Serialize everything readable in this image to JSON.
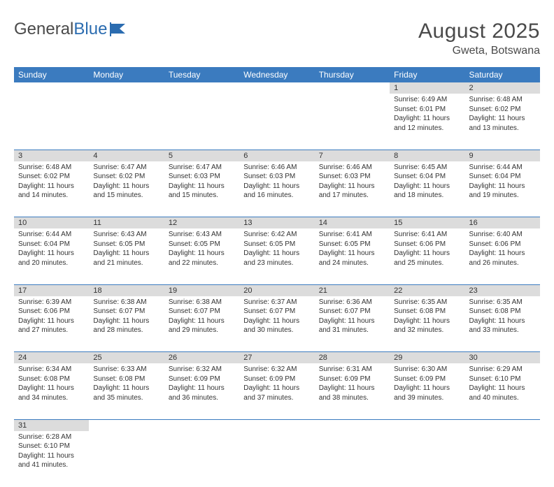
{
  "logo": {
    "text1": "General",
    "text2": "Blue"
  },
  "header": {
    "title": "August 2025",
    "location": "Gweta, Botswana"
  },
  "colors": {
    "header_bg": "#3b7bbf",
    "header_text": "#ffffff",
    "daynum_bg": "#dcdcdc",
    "row_border": "#3b7bbf",
    "body_text": "#333333",
    "title_text": "#4a4a4a",
    "logo_gray": "#4a4a4a",
    "logo_blue": "#2b6cb0"
  },
  "typography": {
    "title_fontsize": 30,
    "location_fontsize": 16,
    "dayheader_fontsize": 12,
    "daynum_fontsize": 11,
    "cell_fontsize": 10
  },
  "day_headers": [
    "Sunday",
    "Monday",
    "Tuesday",
    "Wednesday",
    "Thursday",
    "Friday",
    "Saturday"
  ],
  "weeks": [
    [
      null,
      null,
      null,
      null,
      null,
      {
        "n": "1",
        "sr": "Sunrise: 6:49 AM",
        "ss": "Sunset: 6:01 PM",
        "dl": "Daylight: 11 hours and 12 minutes."
      },
      {
        "n": "2",
        "sr": "Sunrise: 6:48 AM",
        "ss": "Sunset: 6:02 PM",
        "dl": "Daylight: 11 hours and 13 minutes."
      }
    ],
    [
      {
        "n": "3",
        "sr": "Sunrise: 6:48 AM",
        "ss": "Sunset: 6:02 PM",
        "dl": "Daylight: 11 hours and 14 minutes."
      },
      {
        "n": "4",
        "sr": "Sunrise: 6:47 AM",
        "ss": "Sunset: 6:02 PM",
        "dl": "Daylight: 11 hours and 15 minutes."
      },
      {
        "n": "5",
        "sr": "Sunrise: 6:47 AM",
        "ss": "Sunset: 6:03 PM",
        "dl": "Daylight: 11 hours and 15 minutes."
      },
      {
        "n": "6",
        "sr": "Sunrise: 6:46 AM",
        "ss": "Sunset: 6:03 PM",
        "dl": "Daylight: 11 hours and 16 minutes."
      },
      {
        "n": "7",
        "sr": "Sunrise: 6:46 AM",
        "ss": "Sunset: 6:03 PM",
        "dl": "Daylight: 11 hours and 17 minutes."
      },
      {
        "n": "8",
        "sr": "Sunrise: 6:45 AM",
        "ss": "Sunset: 6:04 PM",
        "dl": "Daylight: 11 hours and 18 minutes."
      },
      {
        "n": "9",
        "sr": "Sunrise: 6:44 AM",
        "ss": "Sunset: 6:04 PM",
        "dl": "Daylight: 11 hours and 19 minutes."
      }
    ],
    [
      {
        "n": "10",
        "sr": "Sunrise: 6:44 AM",
        "ss": "Sunset: 6:04 PM",
        "dl": "Daylight: 11 hours and 20 minutes."
      },
      {
        "n": "11",
        "sr": "Sunrise: 6:43 AM",
        "ss": "Sunset: 6:05 PM",
        "dl": "Daylight: 11 hours and 21 minutes."
      },
      {
        "n": "12",
        "sr": "Sunrise: 6:43 AM",
        "ss": "Sunset: 6:05 PM",
        "dl": "Daylight: 11 hours and 22 minutes."
      },
      {
        "n": "13",
        "sr": "Sunrise: 6:42 AM",
        "ss": "Sunset: 6:05 PM",
        "dl": "Daylight: 11 hours and 23 minutes."
      },
      {
        "n": "14",
        "sr": "Sunrise: 6:41 AM",
        "ss": "Sunset: 6:05 PM",
        "dl": "Daylight: 11 hours and 24 minutes."
      },
      {
        "n": "15",
        "sr": "Sunrise: 6:41 AM",
        "ss": "Sunset: 6:06 PM",
        "dl": "Daylight: 11 hours and 25 minutes."
      },
      {
        "n": "16",
        "sr": "Sunrise: 6:40 AM",
        "ss": "Sunset: 6:06 PM",
        "dl": "Daylight: 11 hours and 26 minutes."
      }
    ],
    [
      {
        "n": "17",
        "sr": "Sunrise: 6:39 AM",
        "ss": "Sunset: 6:06 PM",
        "dl": "Daylight: 11 hours and 27 minutes."
      },
      {
        "n": "18",
        "sr": "Sunrise: 6:38 AM",
        "ss": "Sunset: 6:07 PM",
        "dl": "Daylight: 11 hours and 28 minutes."
      },
      {
        "n": "19",
        "sr": "Sunrise: 6:38 AM",
        "ss": "Sunset: 6:07 PM",
        "dl": "Daylight: 11 hours and 29 minutes."
      },
      {
        "n": "20",
        "sr": "Sunrise: 6:37 AM",
        "ss": "Sunset: 6:07 PM",
        "dl": "Daylight: 11 hours and 30 minutes."
      },
      {
        "n": "21",
        "sr": "Sunrise: 6:36 AM",
        "ss": "Sunset: 6:07 PM",
        "dl": "Daylight: 11 hours and 31 minutes."
      },
      {
        "n": "22",
        "sr": "Sunrise: 6:35 AM",
        "ss": "Sunset: 6:08 PM",
        "dl": "Daylight: 11 hours and 32 minutes."
      },
      {
        "n": "23",
        "sr": "Sunrise: 6:35 AM",
        "ss": "Sunset: 6:08 PM",
        "dl": "Daylight: 11 hours and 33 minutes."
      }
    ],
    [
      {
        "n": "24",
        "sr": "Sunrise: 6:34 AM",
        "ss": "Sunset: 6:08 PM",
        "dl": "Daylight: 11 hours and 34 minutes."
      },
      {
        "n": "25",
        "sr": "Sunrise: 6:33 AM",
        "ss": "Sunset: 6:08 PM",
        "dl": "Daylight: 11 hours and 35 minutes."
      },
      {
        "n": "26",
        "sr": "Sunrise: 6:32 AM",
        "ss": "Sunset: 6:09 PM",
        "dl": "Daylight: 11 hours and 36 minutes."
      },
      {
        "n": "27",
        "sr": "Sunrise: 6:32 AM",
        "ss": "Sunset: 6:09 PM",
        "dl": "Daylight: 11 hours and 37 minutes."
      },
      {
        "n": "28",
        "sr": "Sunrise: 6:31 AM",
        "ss": "Sunset: 6:09 PM",
        "dl": "Daylight: 11 hours and 38 minutes."
      },
      {
        "n": "29",
        "sr": "Sunrise: 6:30 AM",
        "ss": "Sunset: 6:09 PM",
        "dl": "Daylight: 11 hours and 39 minutes."
      },
      {
        "n": "30",
        "sr": "Sunrise: 6:29 AM",
        "ss": "Sunset: 6:10 PM",
        "dl": "Daylight: 11 hours and 40 minutes."
      }
    ],
    [
      {
        "n": "31",
        "sr": "Sunrise: 6:28 AM",
        "ss": "Sunset: 6:10 PM",
        "dl": "Daylight: 11 hours and 41 minutes."
      },
      null,
      null,
      null,
      null,
      null,
      null
    ]
  ]
}
